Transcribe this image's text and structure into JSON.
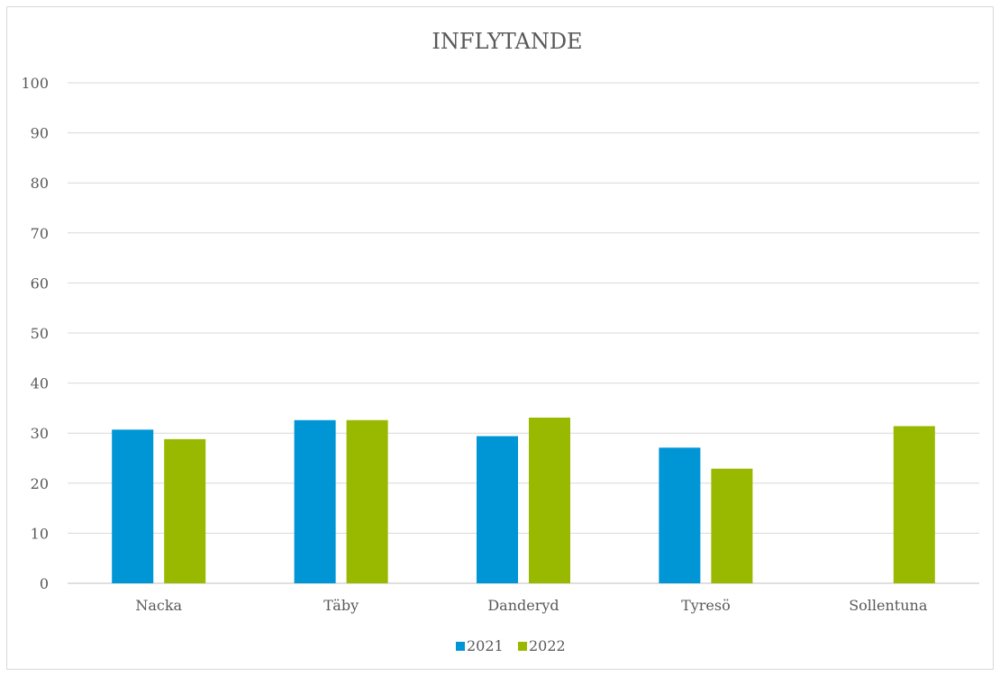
{
  "chart_data": {
    "type": "bar",
    "title": "INFLYTANDE",
    "xlabel": "",
    "ylabel": "",
    "ylim": [
      0,
      100
    ],
    "yticks": [
      0,
      10,
      20,
      30,
      40,
      50,
      60,
      70,
      80,
      90,
      100
    ],
    "grid": true,
    "legend_position": "bottom",
    "categories": [
      "Nacka",
      "Täby",
      "Danderyd",
      "Tyresö",
      "Sollentuna"
    ],
    "series": [
      {
        "name": "2021",
        "color": "#0096d6",
        "values": [
          30.7,
          32.6,
          29.4,
          27.1,
          null
        ]
      },
      {
        "name": "2022",
        "color": "#99b800",
        "values": [
          28.8,
          32.6,
          33.1,
          22.9,
          31.4
        ]
      }
    ]
  }
}
